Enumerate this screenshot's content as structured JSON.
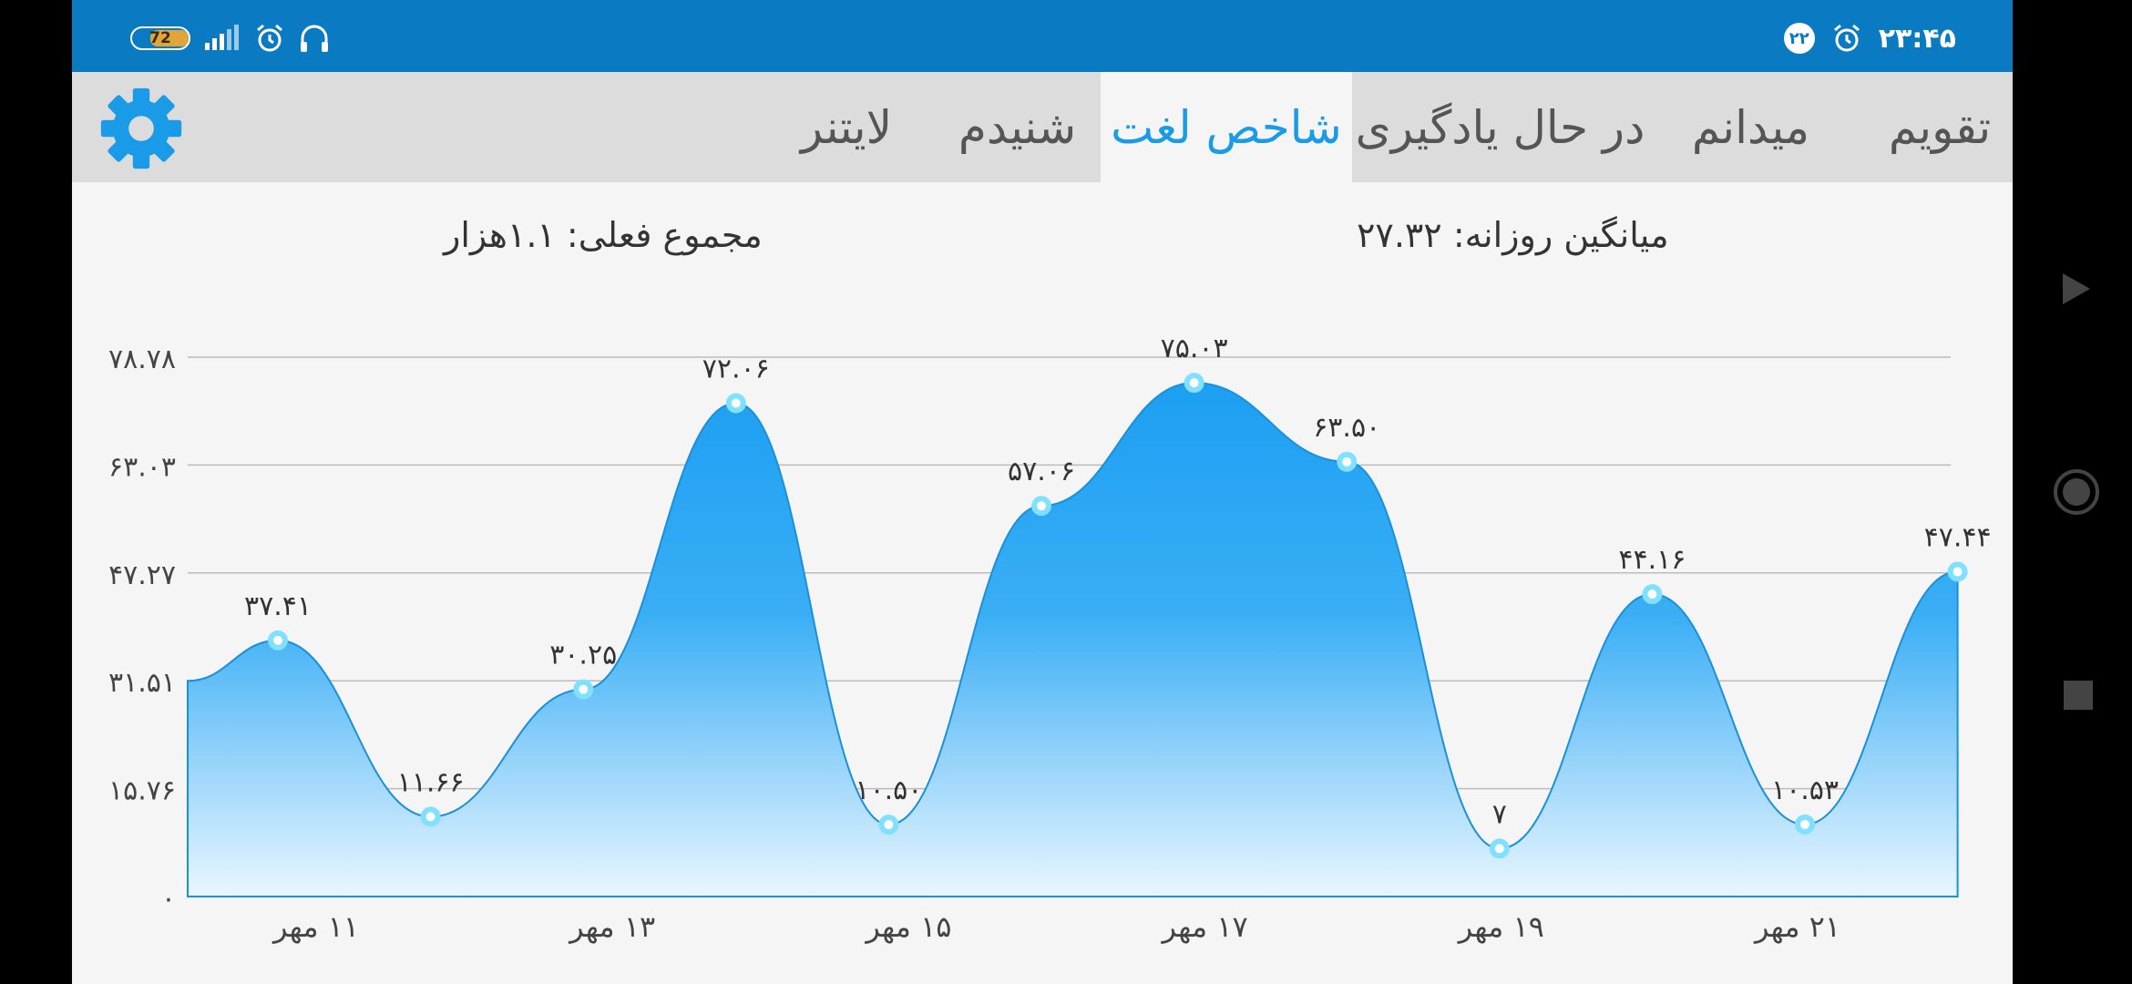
{
  "status_bar": {
    "battery": "72",
    "time": "۲۳:۴۵",
    "date_badge": "۲۲",
    "icons": [
      "battery-icon",
      "signal-icon",
      "alarm-icon",
      "headphones-icon",
      "alarm-icon",
      "date-badge-icon"
    ]
  },
  "tabs": [
    {
      "label": "تقویم",
      "active": false
    },
    {
      "label": "میدانم",
      "active": false
    },
    {
      "label": "در حال یادگیری",
      "active": false
    },
    {
      "label": "شاخص لغت",
      "active": true
    },
    {
      "label": "شنیدم",
      "active": false
    },
    {
      "label": "لایتنر",
      "active": false
    }
  ],
  "settings_icon": "gear-icon",
  "stats": {
    "daily_average": "میانگین روزانه: ۲۷.۳۲",
    "current_total": "مجموع فعلی: ۱.۱هزار"
  },
  "colors": {
    "status_bar": "#0a7ac2",
    "accent": "#1a9be8",
    "area_top": "#22a5f5",
    "area_bottom": "#e6f4ff",
    "point": "#7fe0ff"
  },
  "chart_data": {
    "type": "area",
    "x_tick_labels": [
      "۱۱ مهر",
      "۱۳ مهر",
      "۱۵ مهر",
      "۱۷ مهر",
      "۱۹ مهر",
      "۲۱ مهر"
    ],
    "y_tick_labels": [
      "۰",
      "۱۵.۷۶",
      "۳۱.۵۱",
      "۴۷.۲۷",
      "۶۳.۰۳",
      "۷۸.۷۸"
    ],
    "ylim": [
      0,
      78.78
    ],
    "grid": true,
    "points": [
      {
        "value": 37.41,
        "label": "۳۷.۴۱"
      },
      {
        "value": 11.66,
        "label": "۱۱.۶۶"
      },
      {
        "value": 30.25,
        "label": "۳۰.۲۵"
      },
      {
        "value": 72.06,
        "label": "۷۲.۰۶"
      },
      {
        "value": 10.5,
        "label": "۱۰.۵۰"
      },
      {
        "value": 57.06,
        "label": "۵۷.۰۶"
      },
      {
        "value": 75.03,
        "label": "۷۵.۰۳"
      },
      {
        "value": 63.5,
        "label": "۶۳.۵۰"
      },
      {
        "value": 7,
        "label": "۷"
      },
      {
        "value": 44.16,
        "label": "۴۴.۱۶"
      },
      {
        "value": 10.53,
        "label": "۱۰.۵۳"
      },
      {
        "value": 47.44,
        "label": "۴۷.۴۴"
      }
    ],
    "start_value": 31.5
  },
  "nav_bar": {
    "icons": [
      "back-icon",
      "home-icon",
      "recents-icon"
    ]
  }
}
